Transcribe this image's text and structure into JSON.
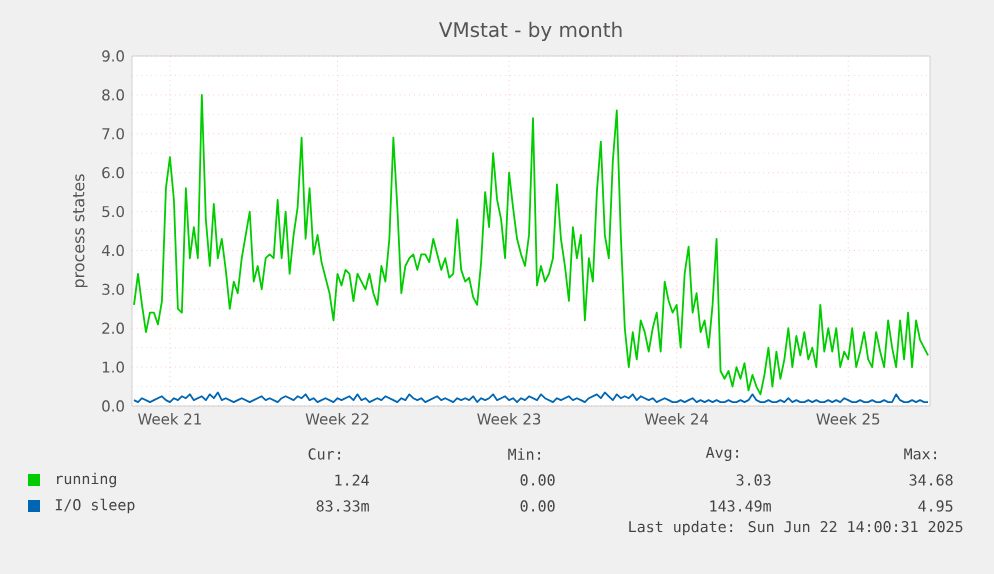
{
  "chart_data": {
    "type": "line",
    "title": "VMstat - by month",
    "ylabel": "process states",
    "categories": [
      null,
      null,
      null,
      null,
      null,
      null,
      null,
      null,
      null,
      "Week 21",
      null,
      null,
      null,
      null,
      null,
      null,
      null,
      null,
      null,
      null,
      null,
      null,
      null,
      null,
      null,
      null,
      null,
      null,
      null,
      null,
      null,
      null,
      null,
      null,
      null,
      null,
      null,
      null,
      null,
      null,
      null,
      null,
      null,
      null,
      null,
      null,
      null,
      null,
      null,
      null,
      null,
      "Week 22",
      null,
      null,
      null,
      null,
      null,
      null,
      null,
      null,
      null,
      null,
      null,
      null,
      null,
      null,
      null,
      null,
      null,
      null,
      null,
      null,
      null,
      null,
      null,
      null,
      null,
      null,
      null,
      null,
      null,
      null,
      null,
      null,
      null,
      null,
      null,
      null,
      null,
      null,
      null,
      null,
      null,
      null,
      "Week 23",
      null,
      null,
      null,
      null,
      null,
      null,
      null,
      null,
      null,
      null,
      null,
      null,
      null,
      null,
      null,
      null,
      null,
      null,
      null,
      null,
      null,
      null,
      null,
      null,
      null,
      null,
      null,
      null,
      null,
      null,
      null,
      null,
      null,
      null,
      null,
      null,
      null,
      null,
      null,
      null,
      null,
      "Week 24",
      null,
      null,
      null,
      null,
      null,
      null,
      null,
      null,
      null,
      null,
      null,
      null,
      null,
      null,
      null,
      null,
      null,
      null,
      null,
      null,
      null,
      null,
      null,
      null,
      null,
      null,
      null,
      null,
      null,
      null,
      null,
      null,
      null,
      null,
      null,
      null,
      null,
      null,
      null,
      null,
      null,
      null,
      "Week 25",
      null,
      null,
      null,
      null,
      null,
      null,
      null,
      null,
      null,
      null,
      null,
      null,
      null,
      null,
      null,
      null,
      null,
      null,
      null,
      null
    ],
    "ylim": [
      0,
      9
    ],
    "yticks": [
      {
        "value": 0,
        "label": "0.0"
      },
      {
        "value": 1,
        "label": "1.0"
      },
      {
        "value": 2,
        "label": "2.0"
      },
      {
        "value": 3,
        "label": "3.0"
      },
      {
        "value": 4,
        "label": "4.0"
      },
      {
        "value": 5,
        "label": "5.0"
      },
      {
        "value": 6,
        "label": "6.0"
      },
      {
        "value": 7,
        "label": "7.0"
      },
      {
        "value": 8,
        "label": "8.0"
      },
      {
        "value": 9,
        "label": "9.0"
      }
    ],
    "grid": true,
    "legend": "bottom",
    "series": [
      {
        "name": "running",
        "color": "#00cc00",
        "values": [
          2.6,
          3.4,
          2.6,
          1.9,
          2.4,
          2.4,
          2.1,
          2.7,
          5.6,
          6.4,
          5.3,
          2.5,
          2.4,
          5.6,
          3.8,
          4.6,
          3.8,
          8.0,
          4.8,
          3.6,
          5.2,
          3.8,
          4.3,
          3.5,
          2.5,
          3.2,
          2.9,
          3.8,
          4.4,
          5.0,
          3.2,
          3.6,
          3.0,
          3.8,
          3.9,
          3.8,
          5.3,
          3.8,
          5.0,
          3.4,
          4.4,
          5.1,
          6.9,
          4.3,
          5.6,
          3.9,
          4.4,
          3.7,
          3.3,
          2.9,
          2.2,
          3.4,
          3.1,
          3.5,
          3.4,
          2.7,
          3.4,
          3.2,
          3.0,
          3.4,
          2.9,
          2.6,
          3.6,
          3.2,
          4.3,
          6.9,
          5.1,
          2.9,
          3.6,
          3.8,
          3.9,
          3.5,
          3.9,
          3.9,
          3.7,
          4.3,
          3.9,
          3.5,
          3.8,
          3.3,
          3.4,
          4.8,
          3.5,
          3.2,
          3.3,
          2.8,
          2.6,
          3.7,
          5.5,
          4.6,
          6.5,
          5.3,
          4.8,
          3.8,
          6.0,
          5.1,
          4.3,
          3.9,
          3.6,
          4.4,
          7.4,
          3.1,
          3.6,
          3.2,
          3.4,
          3.8,
          5.7,
          4.3,
          3.6,
          2.7,
          4.6,
          3.8,
          4.4,
          2.2,
          3.8,
          3.2,
          5.5,
          6.8,
          4.4,
          3.8,
          6.3,
          7.6,
          4.4,
          2.0,
          1.0,
          1.9,
          1.2,
          2.2,
          1.9,
          1.4,
          2.0,
          2.4,
          1.4,
          3.2,
          2.7,
          2.4,
          2.6,
          1.5,
          3.4,
          4.1,
          2.4,
          2.9,
          1.9,
          2.2,
          1.5,
          2.6,
          4.3,
          0.9,
          0.7,
          0.9,
          0.5,
          1.0,
          0.7,
          1.1,
          0.4,
          0.8,
          0.5,
          0.3,
          0.8,
          1.5,
          0.5,
          1.4,
          0.7,
          1.2,
          2.0,
          1.0,
          1.8,
          1.3,
          1.9,
          1.2,
          1.5,
          1.0,
          2.6,
          1.4,
          2.0,
          1.4,
          2.0,
          1.0,
          1.4,
          1.2,
          2.0,
          1.0,
          1.4,
          1.9,
          1.2,
          1.0,
          1.9,
          1.4,
          1.0,
          2.2,
          1.5,
          1.0,
          2.2,
          1.2,
          2.4,
          1.0,
          2.2,
          1.7,
          1.5,
          1.3
        ]
      },
      {
        "name": "I/O sleep",
        "color": "#0066b3",
        "values": [
          0.15,
          0.1,
          0.2,
          0.15,
          0.1,
          0.15,
          0.2,
          0.25,
          0.15,
          0.1,
          0.2,
          0.15,
          0.25,
          0.2,
          0.3,
          0.15,
          0.2,
          0.25,
          0.15,
          0.3,
          0.2,
          0.35,
          0.15,
          0.2,
          0.15,
          0.1,
          0.15,
          0.2,
          0.15,
          0.1,
          0.15,
          0.2,
          0.25,
          0.15,
          0.2,
          0.15,
          0.1,
          0.2,
          0.25,
          0.2,
          0.15,
          0.25,
          0.2,
          0.3,
          0.15,
          0.2,
          0.1,
          0.15,
          0.2,
          0.15,
          0.1,
          0.2,
          0.15,
          0.2,
          0.25,
          0.15,
          0.3,
          0.15,
          0.2,
          0.1,
          0.15,
          0.2,
          0.15,
          0.25,
          0.2,
          0.15,
          0.1,
          0.2,
          0.15,
          0.3,
          0.2,
          0.15,
          0.2,
          0.1,
          0.15,
          0.2,
          0.25,
          0.15,
          0.2,
          0.15,
          0.1,
          0.2,
          0.15,
          0.2,
          0.15,
          0.25,
          0.1,
          0.2,
          0.15,
          0.2,
          0.3,
          0.15,
          0.2,
          0.25,
          0.15,
          0.2,
          0.1,
          0.2,
          0.15,
          0.25,
          0.2,
          0.15,
          0.3,
          0.2,
          0.15,
          0.1,
          0.2,
          0.15,
          0.2,
          0.25,
          0.15,
          0.2,
          0.15,
          0.1,
          0.2,
          0.25,
          0.3,
          0.2,
          0.35,
          0.25,
          0.15,
          0.3,
          0.2,
          0.25,
          0.2,
          0.3,
          0.15,
          0.25,
          0.2,
          0.15,
          0.2,
          0.1,
          0.15,
          0.2,
          0.15,
          0.1,
          0.1,
          0.15,
          0.1,
          0.15,
          0.2,
          0.1,
          0.15,
          0.1,
          0.15,
          0.1,
          0.15,
          0.1,
          0.1,
          0.15,
          0.1,
          0.1,
          0.15,
          0.1,
          0.15,
          0.3,
          0.15,
          0.1,
          0.1,
          0.15,
          0.1,
          0.1,
          0.15,
          0.1,
          0.2,
          0.1,
          0.15,
          0.1,
          0.1,
          0.15,
          0.1,
          0.15,
          0.1,
          0.1,
          0.15,
          0.1,
          0.15,
          0.1,
          0.2,
          0.15,
          0.1,
          0.1,
          0.15,
          0.1,
          0.1,
          0.15,
          0.1,
          0.1,
          0.15,
          0.1,
          0.1,
          0.3,
          0.15,
          0.1,
          0.1,
          0.15,
          0.1,
          0.15,
          0.1,
          0.1
        ]
      }
    ],
    "annotations": [
      "Cur:",
      "Min:",
      "Avg:",
      "Max:",
      "1.24",
      "0.00",
      "3.03",
      "34.68",
      "83.33m",
      "0.00",
      "143.49m",
      "4.95",
      "Last update: Sun Jun 22 14:00:31 2025"
    ]
  }
}
